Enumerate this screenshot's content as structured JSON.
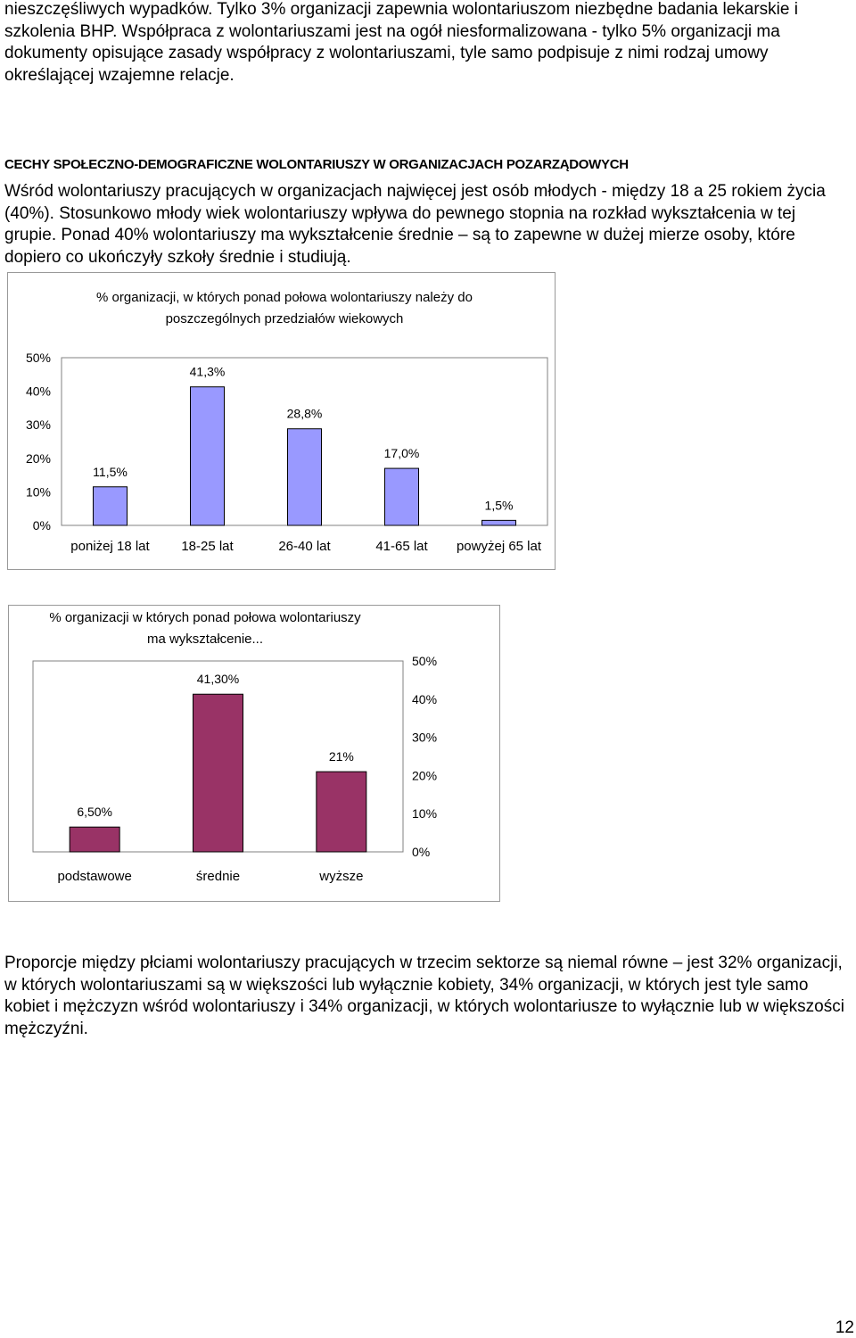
{
  "paragraphs": {
    "top": "nieszczęśliwych wypadków. Tylko 3% organizacji zapewnia wolontariuszom niezbędne badania lekarskie i szkolenia BHP. Współpraca z wolontariuszami jest na ogół niesformalizowana - tylko 5% organizacji ma dokumenty opisujące zasady współpracy z wolontariuszami, tyle samo podpisuje z nimi rodzaj umowy określającej wzajemne relacje.",
    "heading": "CECHY SPOŁECZNO-DEMOGRAFICZNE WOLONTARIUSZY W ORGANIZACJACH POZARZĄDOWYCH",
    "middle": "Wśród wolontariuszy pracujących w organizacjach najwięcej jest osób młodych - między 18 a 25 rokiem życia (40%). Stosunkowo młody wiek wolontariuszy wpływa do pewnego stopnia na rozkład wykształcenia w tej grupie. Ponad 40% wolontariuszy ma wykształcenie średnie – są to zapewne w dużej mierze osoby, które dopiero co ukończyły szkoły średnie i studiują.",
    "bottom": "Proporcje między płciami wolontariuszy pracujących w trzecim sektorze są niemal równe – jest 32% organizacji, w których wolontariuszami są w większości lub wyłącznie kobiety, 34% organizacji, w których jest tyle samo kobiet i mężczyzn wśród wolontariuszy i 34% organizacji, w których wolontariusze to wyłącznie lub w większości mężczyźni."
  },
  "page_number": "12",
  "chart_data": [
    {
      "type": "bar",
      "title": "% organizacji, w których ponad połowa wolontariuszy należy do poszczególnych przedziałów wiekowych",
      "categories": [
        "poniżej 18 lat",
        "18-25 lat",
        "26-40 lat",
        "41-65 lat",
        "powyżej 65 lat"
      ],
      "values": [
        11.5,
        41.3,
        28.8,
        17.0,
        1.5
      ],
      "value_labels": [
        "11,5%",
        "41,3%",
        "28,8%",
        "17,0%",
        "1,5%"
      ],
      "yticks": [
        "0%",
        "10%",
        "20%",
        "30%",
        "40%",
        "50%"
      ],
      "ylim": [
        0,
        50
      ],
      "yaxis_side": "left",
      "bar_color": "#9999ff",
      "grid": false
    },
    {
      "type": "bar",
      "title": "% organizacji w których ponad połowa wolontariuszy ma wykształcenie...",
      "categories": [
        "podstawowe",
        "średnie",
        "wyższe"
      ],
      "values": [
        6.5,
        41.3,
        21
      ],
      "value_labels": [
        "6,50%",
        "41,30%",
        "21%"
      ],
      "yticks": [
        "0%",
        "10%",
        "20%",
        "30%",
        "40%",
        "50%"
      ],
      "ylim": [
        0,
        50
      ],
      "yaxis_side": "right",
      "bar_color": "#993366",
      "grid": false
    }
  ]
}
